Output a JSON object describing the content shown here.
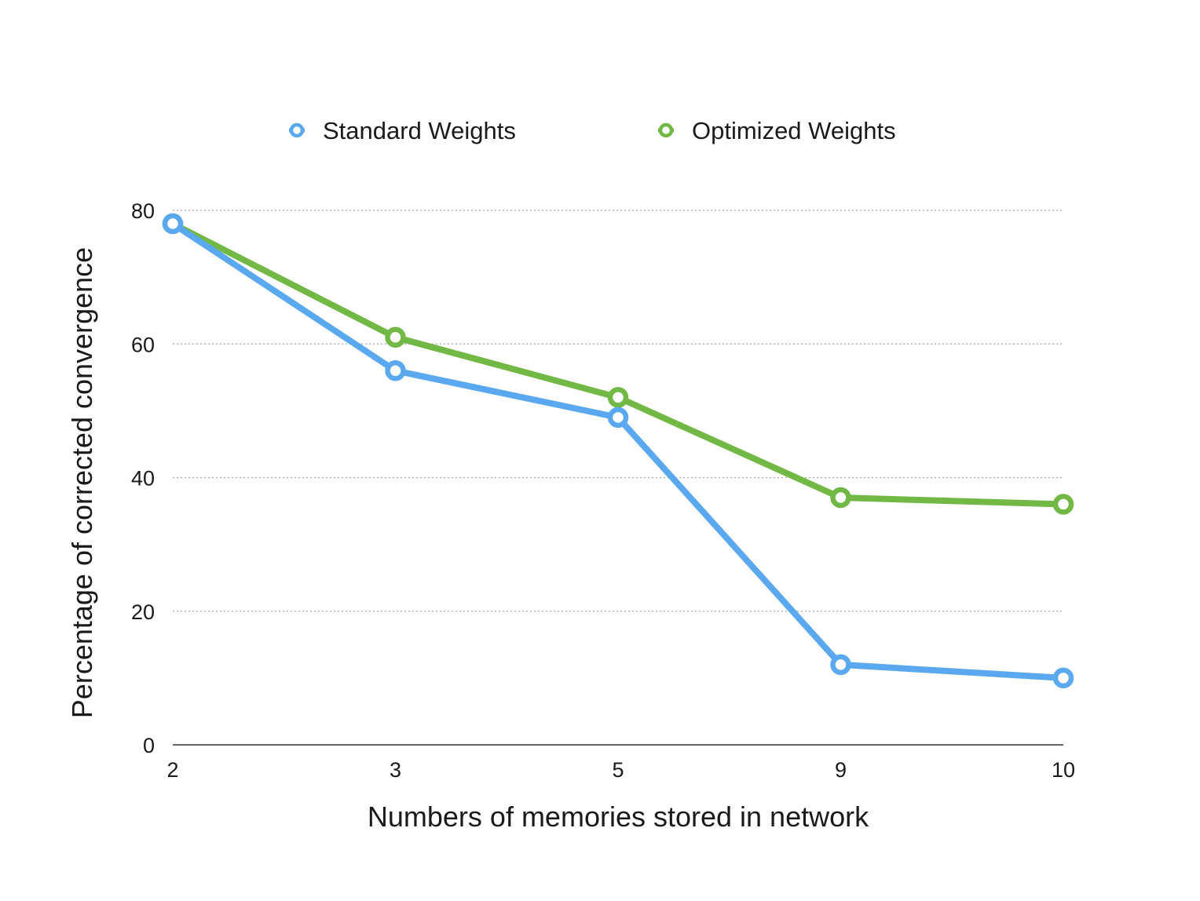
{
  "chart_data": {
    "type": "line",
    "x": [
      "2",
      "3",
      "5",
      "9",
      "10"
    ],
    "series": [
      {
        "name": "Standard Weights",
        "color": "#5aa9f0",
        "values": [
          78,
          56,
          49,
          12,
          10
        ]
      },
      {
        "name": "Optimized Weights",
        "color": "#71b844",
        "values": [
          78,
          61,
          52,
          37,
          36
        ]
      }
    ],
    "xlabel": "Numbers of memories stored in network",
    "ylabel": "Percentage of corrected convergence",
    "ylim": [
      0,
      80
    ],
    "yticks": [
      "0",
      "20",
      "40",
      "60",
      "80"
    ],
    "grid": true,
    "legend_position": "top"
  }
}
